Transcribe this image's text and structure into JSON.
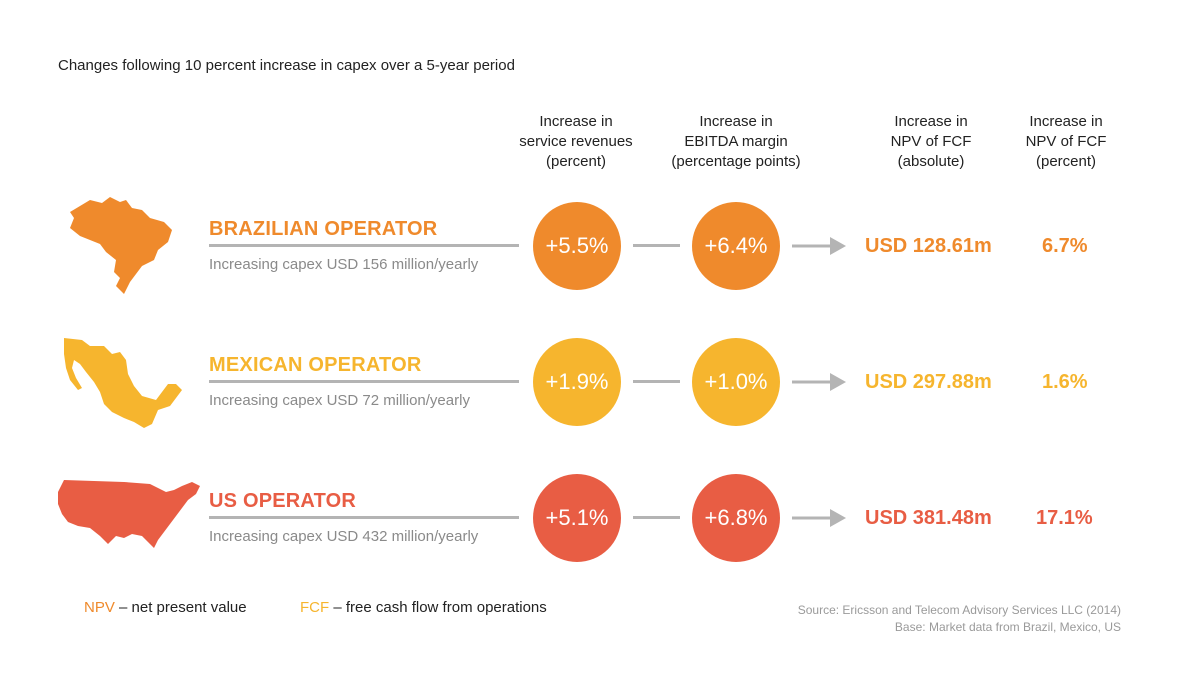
{
  "title": "Changes following 10 percent increase in capex over a 5-year period",
  "columns": [
    [
      "Increase in",
      "service revenues",
      "(percent)"
    ],
    [
      "Increase in",
      "EBITDA margin",
      "(percentage points)"
    ],
    [
      "Increase in",
      "NPV of FCF",
      "(absolute)"
    ],
    [
      "Increase in",
      "NPV of FCF",
      "(percent)"
    ]
  ],
  "operators": [
    {
      "name": "BRAZILIAN OPERATOR",
      "sub": "Increasing capex USD 156 million/yearly",
      "map_icon": "brazil-map-icon",
      "service_revenues": "+5.5%",
      "ebitda_margin": "+6.4%",
      "npv_absolute": "USD 128.61m",
      "npv_percent": "6.7%",
      "color": "#ef8a2c"
    },
    {
      "name": "MEXICAN OPERATOR",
      "sub": "Increasing capex USD 72 million/yearly",
      "map_icon": "mexico-map-icon",
      "service_revenues": "+1.9%",
      "ebitda_margin": "+1.0%",
      "npv_absolute": "USD 297.88m",
      "npv_percent": "1.6%",
      "color": "#f6b52e"
    },
    {
      "name": "US OPERATOR",
      "sub": "Increasing capex USD 432 million/yearly",
      "map_icon": "usa-map-icon",
      "service_revenues": "+5.1%",
      "ebitda_margin": "+6.8%",
      "npv_absolute": "USD 381.48m",
      "npv_percent": "17.1%",
      "color": "#e85d44"
    }
  ],
  "legend": {
    "npv_abbr": "NPV",
    "npv_text": " – net present value",
    "fcf_abbr": "FCF",
    "fcf_text": " – free cash flow from operations"
  },
  "source": {
    "line1": "Source: Ericsson and Telecom Advisory Services LLC (2014)",
    "line2": "Base: Market data from Brazil, Mexico, US"
  },
  "colors": {
    "connector": "#b4b4b4",
    "npv_legend": "#ef8a2c",
    "fcf_legend": "#f6b52e"
  }
}
